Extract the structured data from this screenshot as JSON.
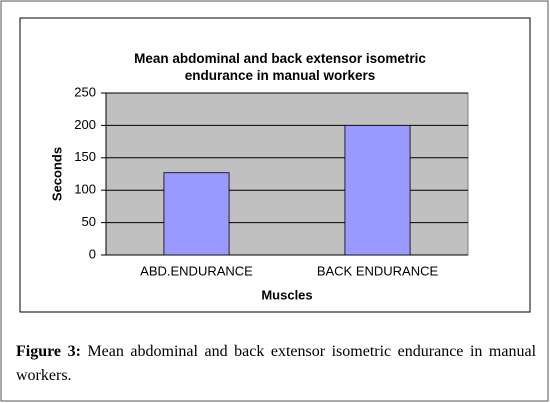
{
  "chart_data": {
    "type": "bar",
    "title": "Mean abdominal and back extensor isometric endurance in manual workers",
    "x_label": "Muscles",
    "y_label": "Seconds",
    "categories": [
      "ABD.ENDURANCE",
      "BACK ENDURANCE"
    ],
    "values": [
      127,
      200
    ],
    "color": "#9999ff",
    "ylim": [
      0,
      250
    ],
    "yticks": [
      0,
      50,
      100,
      150,
      200,
      250
    ],
    "grid": true
  },
  "caption": {
    "label": "Figure 3:",
    "text": "Mean abdominal and back extensor isometric endurance in manual workers."
  }
}
